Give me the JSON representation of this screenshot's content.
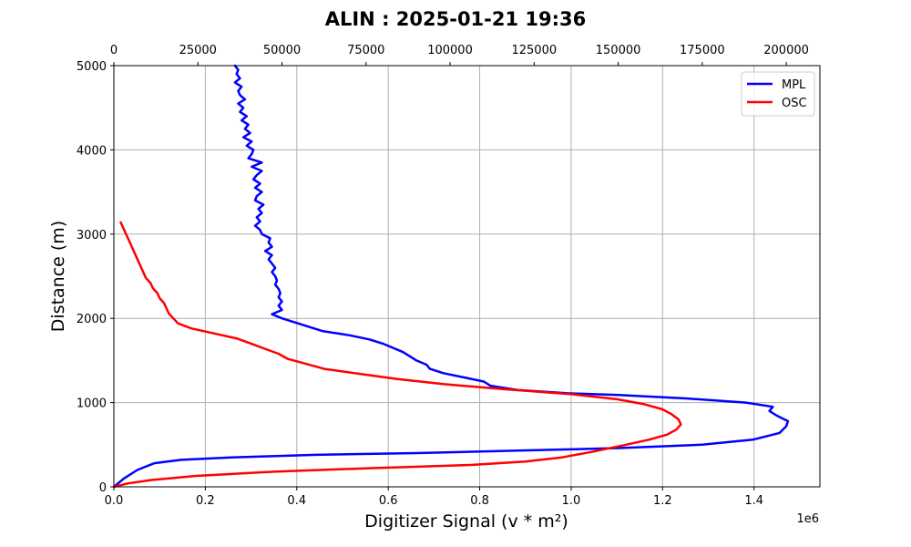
{
  "chart_data": {
    "type": "line",
    "title": "ALIN : 2025-01-21 19:36",
    "xlabel": "Digitizer Signal (v * m²)",
    "ylabel": "Distance (m)",
    "x_scale_label": "1e6",
    "xlim": [
      0,
      1.544
    ],
    "ylim": [
      0,
      5000
    ],
    "top_xlim": [
      0,
      210000
    ],
    "x_ticks": [
      0,
      0.2,
      0.4,
      0.6,
      0.8,
      1.0,
      1.2,
      1.4
    ],
    "x_tick_labels": [
      "0.0",
      "0.2",
      "0.4",
      "0.6",
      "0.8",
      "1.0",
      "1.2",
      "1.4"
    ],
    "y_ticks": [
      0,
      1000,
      2000,
      3000,
      4000,
      5000
    ],
    "y_tick_labels": [
      "0",
      "1000",
      "2000",
      "3000",
      "4000",
      "5000"
    ],
    "top_x_ticks": [
      0,
      25000,
      50000,
      75000,
      100000,
      125000,
      150000,
      175000,
      200000
    ],
    "top_x_tick_labels": [
      "0",
      "25000",
      "50000",
      "75000",
      "100000",
      "125000",
      "150000",
      "175000",
      "200000"
    ],
    "grid": true,
    "legend_position": "top-right",
    "series": [
      {
        "name": "MPL",
        "color": "#0000ff",
        "x_axis": "top",
        "points": [
          [
            0,
            0
          ],
          [
            3000,
            100
          ],
          [
            7000,
            200
          ],
          [
            12000,
            280
          ],
          [
            20000,
            320
          ],
          [
            35000,
            350
          ],
          [
            60000,
            380
          ],
          [
            90000,
            400
          ],
          [
            120000,
            430
          ],
          [
            150000,
            460
          ],
          [
            175000,
            500
          ],
          [
            190000,
            560
          ],
          [
            198000,
            640
          ],
          [
            200000,
            720
          ],
          [
            200500,
            780
          ],
          [
            199000,
            810
          ],
          [
            197000,
            850
          ],
          [
            195000,
            900
          ],
          [
            196000,
            950
          ],
          [
            188000,
            1000
          ],
          [
            170000,
            1050
          ],
          [
            150000,
            1090
          ],
          [
            135000,
            1110
          ],
          [
            120000,
            1150
          ],
          [
            112000,
            1200
          ],
          [
            110000,
            1250
          ],
          [
            104000,
            1300
          ],
          [
            98000,
            1350
          ],
          [
            94000,
            1400
          ],
          [
            93000,
            1450
          ],
          [
            90000,
            1500
          ],
          [
            88000,
            1550
          ],
          [
            86000,
            1600
          ],
          [
            83000,
            1650
          ],
          [
            80000,
            1700
          ],
          [
            76000,
            1750
          ],
          [
            70000,
            1800
          ],
          [
            62000,
            1850
          ],
          [
            58000,
            1900
          ],
          [
            54000,
            1950
          ],
          [
            50000,
            2000
          ],
          [
            47000,
            2050
          ],
          [
            50000,
            2100
          ],
          [
            49000,
            2150
          ],
          [
            50000,
            2200
          ],
          [
            49000,
            2250
          ],
          [
            49500,
            2300
          ],
          [
            49000,
            2350
          ],
          [
            48000,
            2400
          ],
          [
            48500,
            2450
          ],
          [
            48000,
            2500
          ],
          [
            47000,
            2550
          ],
          [
            48000,
            2600
          ],
          [
            47000,
            2650
          ],
          [
            46000,
            2700
          ],
          [
            47000,
            2750
          ],
          [
            45000,
            2800
          ],
          [
            47000,
            2850
          ],
          [
            46000,
            2900
          ],
          [
            46500,
            2950
          ],
          [
            44000,
            3000
          ],
          [
            43500,
            3050
          ],
          [
            42000,
            3100
          ],
          [
            43500,
            3150
          ],
          [
            42500,
            3200
          ],
          [
            44000,
            3250
          ],
          [
            43000,
            3300
          ],
          [
            44500,
            3350
          ],
          [
            42000,
            3400
          ],
          [
            42500,
            3450
          ],
          [
            44000,
            3500
          ],
          [
            42000,
            3550
          ],
          [
            43500,
            3600
          ],
          [
            41500,
            3650
          ],
          [
            42500,
            3700
          ],
          [
            44000,
            3750
          ],
          [
            41000,
            3800
          ],
          [
            44000,
            3850
          ],
          [
            40000,
            3900
          ],
          [
            41000,
            3950
          ],
          [
            41500,
            4000
          ],
          [
            39500,
            4050
          ],
          [
            41000,
            4100
          ],
          [
            38500,
            4150
          ],
          [
            40500,
            4200
          ],
          [
            39000,
            4250
          ],
          [
            40000,
            4300
          ],
          [
            38000,
            4350
          ],
          [
            39500,
            4400
          ],
          [
            37500,
            4450
          ],
          [
            38500,
            4500
          ],
          [
            37000,
            4550
          ],
          [
            39000,
            4600
          ],
          [
            37500,
            4650
          ],
          [
            37000,
            4700
          ],
          [
            38000,
            4750
          ],
          [
            36000,
            4800
          ],
          [
            37500,
            4850
          ],
          [
            36500,
            4900
          ],
          [
            37000,
            4950
          ],
          [
            36000,
            5000
          ]
        ]
      },
      {
        "name": "OSC",
        "color": "#ff0000",
        "x_axis": "bottom",
        "points": [
          [
            0.0,
            0
          ],
          [
            0.03,
            40
          ],
          [
            0.08,
            80
          ],
          [
            0.18,
            130
          ],
          [
            0.35,
            180
          ],
          [
            0.55,
            220
          ],
          [
            0.78,
            260
          ],
          [
            0.9,
            300
          ],
          [
            0.98,
            350
          ],
          [
            1.05,
            420
          ],
          [
            1.12,
            500
          ],
          [
            1.17,
            560
          ],
          [
            1.21,
            620
          ],
          [
            1.23,
            680
          ],
          [
            1.24,
            740
          ],
          [
            1.235,
            800
          ],
          [
            1.22,
            860
          ],
          [
            1.2,
            920
          ],
          [
            1.16,
            980
          ],
          [
            1.1,
            1040
          ],
          [
            1.0,
            1100
          ],
          [
            0.85,
            1160
          ],
          [
            0.72,
            1220
          ],
          [
            0.62,
            1280
          ],
          [
            0.54,
            1340
          ],
          [
            0.46,
            1400
          ],
          [
            0.42,
            1460
          ],
          [
            0.38,
            1520
          ],
          [
            0.36,
            1580
          ],
          [
            0.33,
            1640
          ],
          [
            0.3,
            1700
          ],
          [
            0.27,
            1760
          ],
          [
            0.22,
            1820
          ],
          [
            0.17,
            1880
          ],
          [
            0.14,
            1940
          ],
          [
            0.13,
            2000
          ],
          [
            0.12,
            2060
          ],
          [
            0.115,
            2120
          ],
          [
            0.11,
            2180
          ],
          [
            0.1,
            2240
          ],
          [
            0.095,
            2300
          ],
          [
            0.085,
            2360
          ],
          [
            0.08,
            2420
          ],
          [
            0.07,
            2480
          ],
          [
            0.065,
            2540
          ],
          [
            0.06,
            2600
          ],
          [
            0.055,
            2660
          ],
          [
            0.05,
            2720
          ],
          [
            0.045,
            2780
          ],
          [
            0.04,
            2840
          ],
          [
            0.035,
            2900
          ],
          [
            0.03,
            2960
          ],
          [
            0.025,
            3020
          ],
          [
            0.02,
            3080
          ],
          [
            0.015,
            3140
          ]
        ]
      }
    ]
  }
}
